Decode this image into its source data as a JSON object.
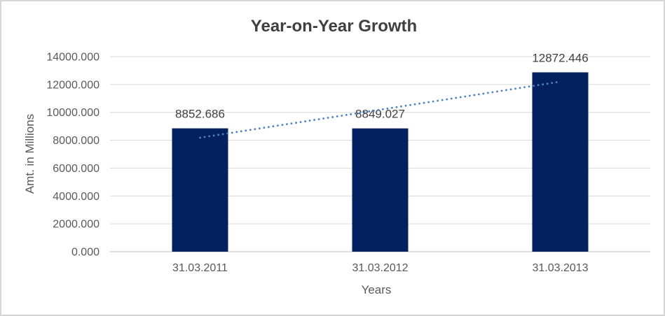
{
  "window": {
    "background": "#ffffff",
    "border_color": "#d6d6d6"
  },
  "chart_data": {
    "type": "bar",
    "title": "Year-on-Year Growth",
    "categories": [
      "31.03.2011",
      "31.03.2012",
      "31.03.2013"
    ],
    "values": [
      8852.686,
      8849.027,
      12872.446
    ],
    "value_labels": [
      "8852.686",
      "8849.027",
      "12872.446"
    ],
    "xlabel": "Years",
    "ylabel": "Amt. in Millions",
    "ylim": [
      0,
      14000
    ],
    "y_tick_step": 2000,
    "y_tick_labels": [
      "0.000",
      "2000.000",
      "4000.000",
      "6000.000",
      "8000.000",
      "10000.000",
      "12000.000",
      "14000.000"
    ],
    "grid": true,
    "legend": "none",
    "trendline": {
      "type": "linear",
      "style": "dotted"
    },
    "colors": {
      "bar": "#03215f",
      "trendline": "#4e81c4",
      "gridline": "#d9d9d9",
      "axis_line": "#c0c0c0",
      "title_text": "#404040",
      "axis_text": "#595959",
      "value_label_text": "#404040"
    }
  }
}
